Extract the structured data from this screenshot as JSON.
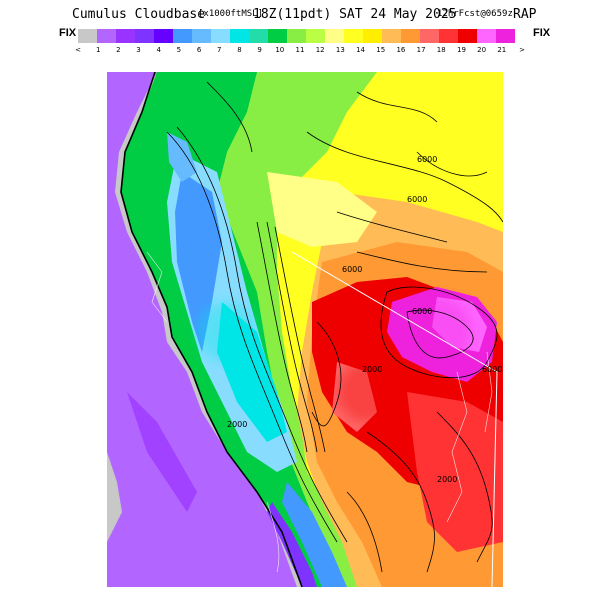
{
  "header": {
    "title": "Cumulus Cloudbase",
    "units": "[x1000ftMSL]",
    "valid_time": "18Z(11pdt) SAT 24 May 2025",
    "forecast": "12hrFcst@0659z",
    "model": "RAP"
  },
  "legend": {
    "fix_left": "FIX",
    "fix_right": "FIX",
    "colors": [
      "#c8c8c8",
      "#b266ff",
      "#9933ff",
      "#7f33ff",
      "#6600ff",
      "#4499ff",
      "#66bbff",
      "#88ddff",
      "#00e5e5",
      "#22ddaa",
      "#00cc44",
      "#88ee44",
      "#bbff44",
      "#ffff88",
      "#ffff22",
      "#ffee00",
      "#ffbb55",
      "#ff9933",
      "#ff6666",
      "#ff3333",
      "#ee0000",
      "#ff66ff",
      "#ee22dd"
    ],
    "tick_labels": [
      "<",
      "1",
      "2",
      "3",
      "4",
      "5",
      "6",
      "7",
      "8",
      "9",
      "10",
      "11",
      "12",
      "13",
      "14",
      "15",
      "16",
      "17",
      "18",
      "19",
      "20",
      "21",
      ">"
    ]
  },
  "map": {
    "contour_labels": [
      "6000",
      "6000",
      "6000",
      "6000",
      "6000",
      "2000",
      "2000",
      "2000",
      "6000"
    ],
    "region_colors": {
      "no_data": "#c8c8c8",
      "ocean_low": "#b266ff",
      "coast_blue": "#4499ff",
      "valley_cyan": "#88ddff",
      "foothills_green": "#00cc44",
      "plateau_yellow": "#ffff22",
      "high_orange": "#ffbb55",
      "high_red": "#ee0000",
      "peak_magenta": "#ee22dd"
    }
  }
}
